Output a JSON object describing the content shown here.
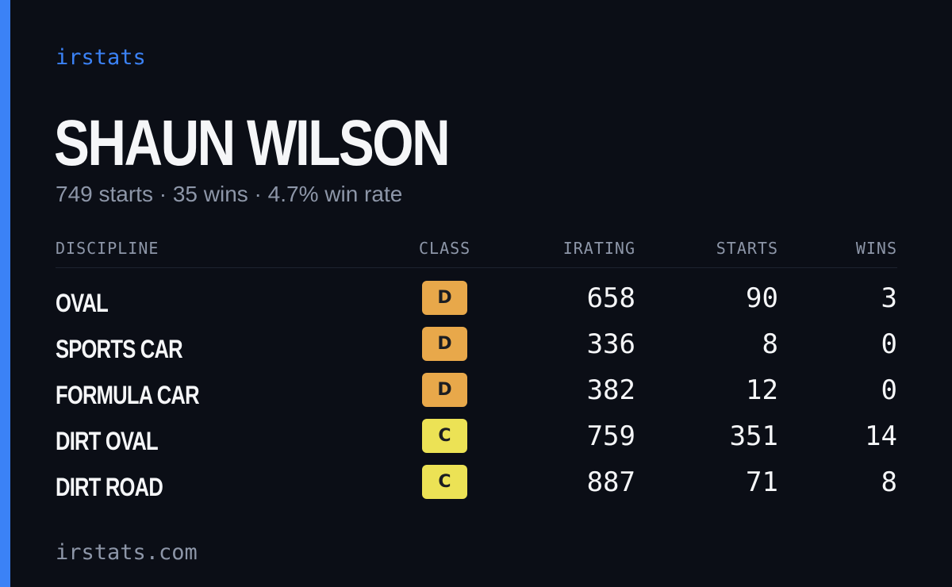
{
  "brand": "irstats",
  "driver_name": "SHAUN WILSON",
  "summary": "749 starts · 35 wins · 4.7% win rate",
  "table": {
    "headers": {
      "discipline": "DISCIPLINE",
      "class": "CLASS",
      "irating": "IRATING",
      "starts": "STARTS",
      "wins": "WINS"
    },
    "rows": [
      {
        "discipline": "OVAL",
        "class": "D",
        "class_color": "#e8a84a",
        "irating": "658",
        "starts": "90",
        "wins": "3"
      },
      {
        "discipline": "SPORTS CAR",
        "class": "D",
        "class_color": "#e8a84a",
        "irating": "336",
        "starts": "8",
        "wins": "0"
      },
      {
        "discipline": "FORMULA CAR",
        "class": "D",
        "class_color": "#e8a84a",
        "irating": "382",
        "starts": "12",
        "wins": "0"
      },
      {
        "discipline": "DIRT OVAL",
        "class": "C",
        "class_color": "#ece255",
        "irating": "759",
        "starts": "351",
        "wins": "14"
      },
      {
        "discipline": "DIRT ROAD",
        "class": "C",
        "class_color": "#ece255",
        "irating": "887",
        "starts": "71",
        "wins": "8"
      }
    ]
  },
  "footer": "irstats.com",
  "colors": {
    "background": "#0b0e16",
    "accent": "#3b82f6",
    "class_d": "#e8a84a",
    "class_c": "#ece255"
  }
}
